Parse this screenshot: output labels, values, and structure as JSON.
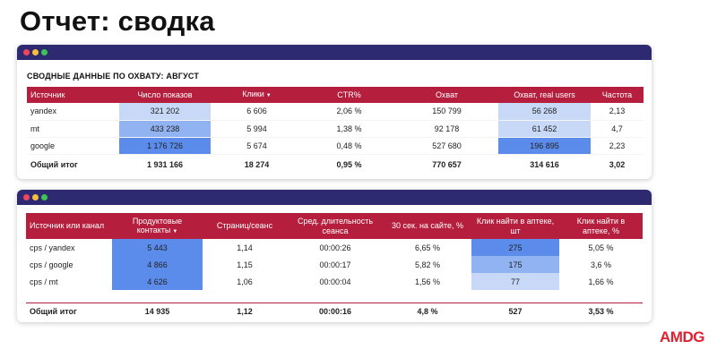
{
  "page": {
    "title": "Отчет: сводка"
  },
  "brand": {
    "logo_text": "AMDG",
    "logo_color": "#e02132"
  },
  "colors": {
    "header_bg": "#b51e3d",
    "titlebar_bg": "#2e2a72",
    "heat_strong": "#5c8ceb",
    "heat_medium": "#91b3f1",
    "heat_light": "#c8d9f8"
  },
  "reach_table": {
    "section_title": "СВОДНЫЕ ДАННЫЕ ПО ОХВАТУ: АВГУСТ",
    "headers": [
      "Источник",
      "Число показов",
      "Клики",
      "CTR%",
      "Охват",
      "Охват, real users",
      "Частота"
    ],
    "sort_indicator": "▼",
    "rows": [
      [
        "yandex",
        "321 202",
        "6 606",
        "2,06 %",
        "150 799",
        "56 268",
        "2,13"
      ],
      [
        "mt",
        "433 238",
        "5 994",
        "1,38 %",
        "92 178",
        "61 452",
        "4,7"
      ],
      [
        "google",
        "1 176 726",
        "5 674",
        "0,48 %",
        "527 680",
        "196 895",
        "2,23"
      ]
    ],
    "heat": {
      "impressions": [
        "light",
        "medium",
        "strong"
      ],
      "real_users": [
        "light",
        "light",
        "strong"
      ]
    },
    "total": [
      "Общий итог",
      "1 931 166",
      "18 274",
      "0,95 %",
      "770 657",
      "314 616",
      "3,02"
    ]
  },
  "channel_table": {
    "headers": [
      "Источник или канал",
      "Продуктовые контакты",
      "Страниц/сеанс",
      "Сред. длительность сеанса",
      "30 сек. на сайте, %",
      "Клик найти в аптеке, шт",
      "Клик найти в аптеке, %"
    ],
    "sort_indicator": "▼",
    "rows": [
      [
        "cps / yandex",
        "5 443",
        "1,14",
        "00:00:26",
        "6,65 %",
        "275",
        "5,05 %"
      ],
      [
        "cps / google",
        "4 866",
        "1,15",
        "00:00:17",
        "5,82 %",
        "175",
        "3,6 %"
      ],
      [
        "cps / mt",
        "4 626",
        "1,06",
        "00:00:04",
        "1,56 %",
        "77",
        "1,66 %"
      ]
    ],
    "heat": {
      "contacts": [
        "strong",
        "strong",
        "strong"
      ],
      "clicks": [
        "strong",
        "medium",
        "light"
      ]
    },
    "total": [
      "Общий итог",
      "14 935",
      "1,12",
      "00:00:16",
      "4,8 %",
      "527",
      "3,53 %"
    ]
  }
}
